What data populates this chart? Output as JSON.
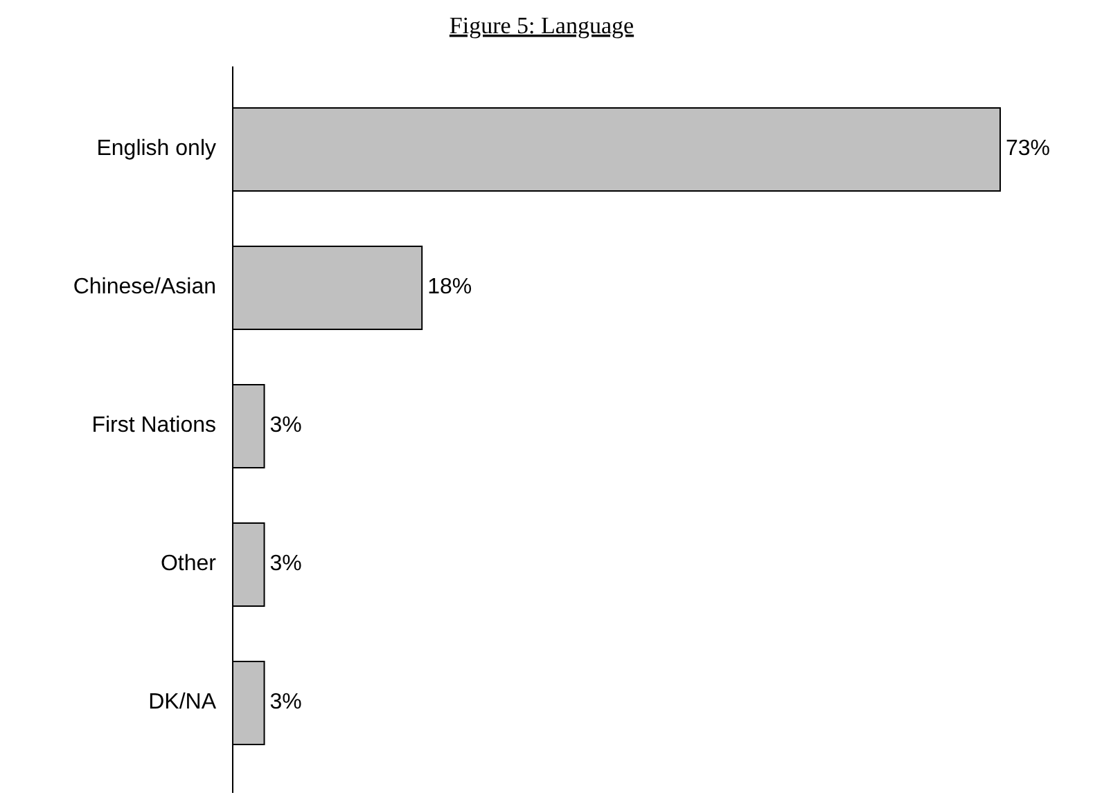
{
  "chart_data": {
    "type": "bar",
    "title": "Figure 5: Language",
    "orientation": "horizontal",
    "categories": [
      "English only",
      "Chinese/Asian",
      "First Nations",
      "Other",
      "DK/NA"
    ],
    "values": [
      73,
      18,
      3,
      3,
      3
    ],
    "value_labels": [
      "73%",
      "18%",
      "3%",
      "3%",
      "3%"
    ],
    "color": "#c0c0c0"
  }
}
